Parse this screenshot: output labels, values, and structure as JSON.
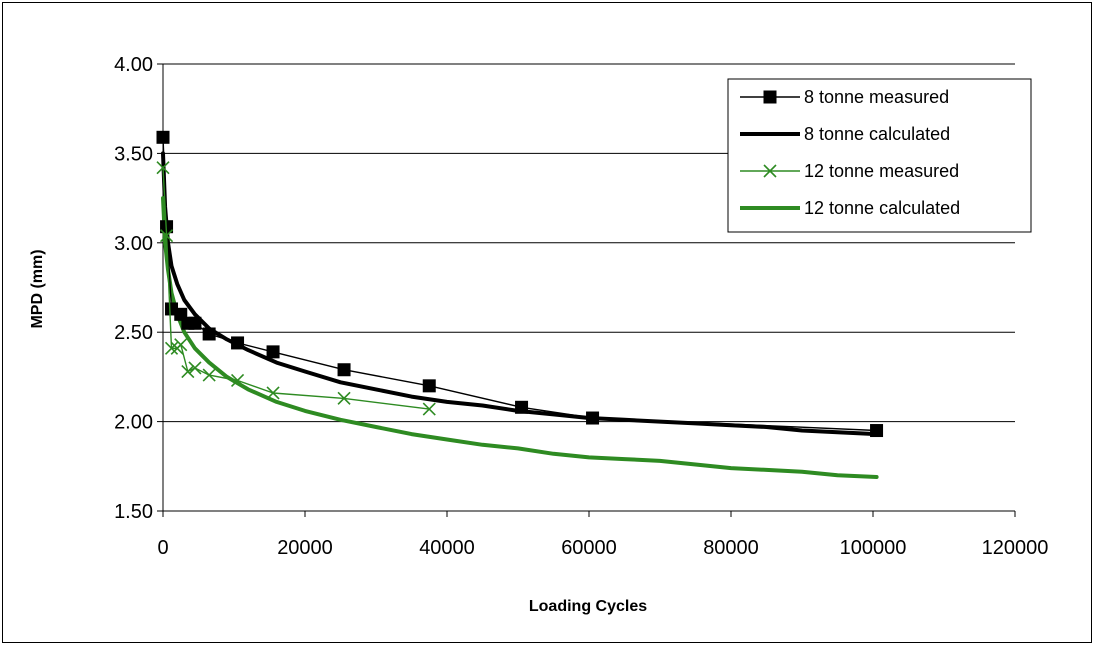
{
  "chart_data": {
    "type": "line",
    "title": "",
    "xlabel": "Loading Cycles",
    "ylabel": "MPD (mm)",
    "xlim": [
      0,
      120000
    ],
    "ylim": [
      1.5,
      4.0
    ],
    "x_ticks": [
      "0",
      "20000",
      "40000",
      "60000",
      "80000",
      "100000",
      "120000"
    ],
    "y_ticks": [
      "4.00",
      "3.50",
      "3.00",
      "2.50",
      "2.00",
      "1.50"
    ],
    "grid": "horizontal major gridlines",
    "legend_position": "top-right",
    "series": [
      {
        "name": "8 tonne measured",
        "color": "#000000",
        "marker": "square",
        "line_style": "thin",
        "points": [
          [
            0,
            3.59
          ],
          [
            500,
            3.09
          ],
          [
            1200,
            2.63
          ],
          [
            2500,
            2.6
          ],
          [
            3500,
            2.55
          ],
          [
            4500,
            2.55
          ],
          [
            6500,
            2.49
          ],
          [
            10500,
            2.44
          ],
          [
            15500,
            2.39
          ],
          [
            25500,
            2.29
          ],
          [
            37500,
            2.2
          ],
          [
            50500,
            2.08
          ],
          [
            60500,
            2.02
          ],
          [
            100500,
            1.95
          ]
        ]
      },
      {
        "name": "8 tonne calculated",
        "color": "#000000",
        "marker": "none",
        "line_style": "thick",
        "points": [
          [
            0,
            3.5
          ],
          [
            300,
            3.2
          ],
          [
            700,
            3.0
          ],
          [
            1200,
            2.87
          ],
          [
            2000,
            2.77
          ],
          [
            3000,
            2.68
          ],
          [
            4500,
            2.6
          ],
          [
            6500,
            2.52
          ],
          [
            9000,
            2.46
          ],
          [
            12000,
            2.4
          ],
          [
            16000,
            2.33
          ],
          [
            20000,
            2.28
          ],
          [
            25000,
            2.22
          ],
          [
            30000,
            2.18
          ],
          [
            35000,
            2.14
          ],
          [
            40000,
            2.11
          ],
          [
            45000,
            2.09
          ],
          [
            50000,
            2.06
          ],
          [
            55000,
            2.04
          ],
          [
            60000,
            2.02
          ],
          [
            65000,
            2.01
          ],
          [
            70000,
            2.0
          ],
          [
            75000,
            1.99
          ],
          [
            80000,
            1.98
          ],
          [
            85000,
            1.97
          ],
          [
            90000,
            1.95
          ],
          [
            95000,
            1.94
          ],
          [
            100500,
            1.93
          ]
        ]
      },
      {
        "name": "12 tonne measured",
        "color": "#2e8b22",
        "marker": "x",
        "line_style": "thin",
        "points": [
          [
            0,
            3.42
          ],
          [
            500,
            3.04
          ],
          [
            1200,
            2.41
          ],
          [
            2000,
            2.41
          ],
          [
            2500,
            2.43
          ],
          [
            3500,
            2.28
          ],
          [
            4500,
            2.3
          ],
          [
            6500,
            2.26
          ],
          [
            10500,
            2.23
          ],
          [
            15500,
            2.16
          ],
          [
            25500,
            2.13
          ],
          [
            37500,
            2.07
          ]
        ]
      },
      {
        "name": "12 tonne calculated",
        "color": "#2e8b22",
        "marker": "none",
        "line_style": "thick",
        "points": [
          [
            0,
            3.25
          ],
          [
            300,
            3.0
          ],
          [
            700,
            2.85
          ],
          [
            1200,
            2.72
          ],
          [
            2000,
            2.6
          ],
          [
            3000,
            2.5
          ],
          [
            4500,
            2.41
          ],
          [
            6500,
            2.33
          ],
          [
            9000,
            2.25
          ],
          [
            12000,
            2.18
          ],
          [
            16000,
            2.11
          ],
          [
            20000,
            2.06
          ],
          [
            25000,
            2.01
          ],
          [
            30000,
            1.97
          ],
          [
            35000,
            1.93
          ],
          [
            40000,
            1.9
          ],
          [
            45000,
            1.87
          ],
          [
            50000,
            1.85
          ],
          [
            55000,
            1.82
          ],
          [
            60000,
            1.8
          ],
          [
            65000,
            1.79
          ],
          [
            70000,
            1.78
          ],
          [
            75000,
            1.76
          ],
          [
            80000,
            1.74
          ],
          [
            85000,
            1.73
          ],
          [
            90000,
            1.72
          ],
          [
            95000,
            1.7
          ],
          [
            100500,
            1.69
          ]
        ]
      }
    ]
  }
}
